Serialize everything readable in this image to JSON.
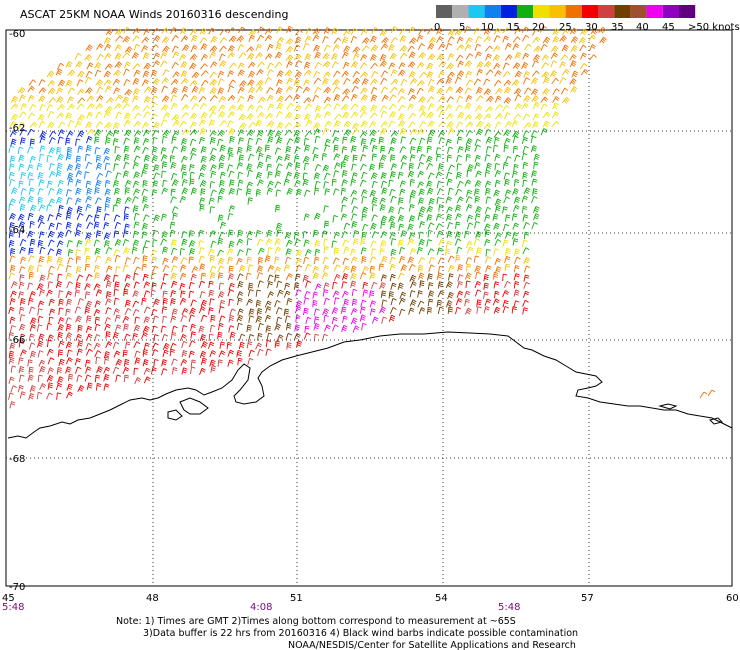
{
  "title": "ASCAT 25KM NOAA Winds 20160316 descending",
  "legend": {
    "colors": [
      "#606060",
      "#b0b0b0",
      "#1cc8f0",
      "#1080f0",
      "#0020e0",
      "#10b010",
      "#f0e000",
      "#f8c000",
      "#f07000",
      "#f00000",
      "#d04040",
      "#704000",
      "#a05030",
      "#f000f0",
      "#9000c0",
      "#600080"
    ],
    "tick_labels": [
      "0",
      "5",
      "10",
      "15",
      "20",
      "25",
      "30",
      "35",
      "40",
      "45"
    ],
    "units_label": ">50 knots"
  },
  "axes": {
    "lat_labels": [
      "-60",
      "-62",
      "-64",
      "-66",
      "-68",
      "-70"
    ],
    "lon_labels": [
      "45",
      "48",
      "51",
      "54",
      "57",
      "60"
    ]
  },
  "times": [
    "5:48",
    "4:08",
    "5:48"
  ],
  "notes": [
    "Note: 1) Times are GMT 2)Times along bottom correspond to measurement at ~65S",
    "3)Data buffer is 22 hrs from 20160316 4) Black wind barbs indicate possible contamination",
    "NOAA/NESDIS/Center for Satellite Applications and Research"
  ]
}
